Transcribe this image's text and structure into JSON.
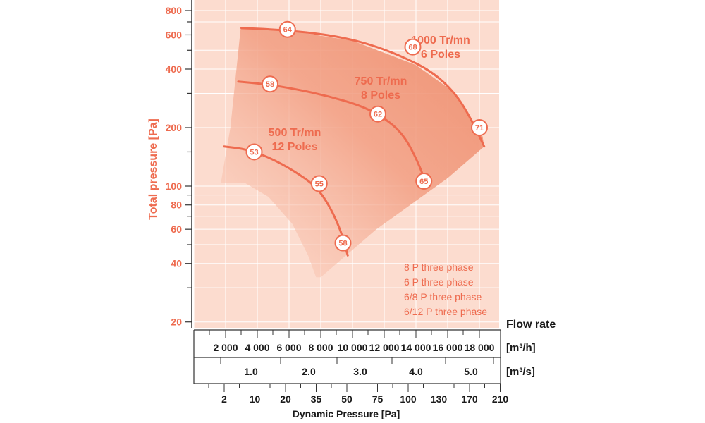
{
  "chart_data": {
    "type": "line",
    "ylabel": "Total pressure [Pa]",
    "y_scale": "log",
    "y_ticks_labeled": [
      20,
      40,
      60,
      80,
      100,
      200,
      400,
      600,
      800
    ],
    "flow_rate_label": "Flow rate",
    "flow_m3h_unit": "[m³/h]",
    "flow_m3h_ticks": [
      "2 000",
      "4 000",
      "6 000",
      "8 000",
      "10 000",
      "12 000",
      "14 000",
      "16 000",
      "18 000"
    ],
    "flow_m3s_unit": "[m³/s]",
    "flow_m3s_ticks": [
      "1.0",
      "2.0",
      "3.0",
      "4.0",
      "5.0"
    ],
    "dynamic_pressure_label": "Dynamic Pressure [Pa]",
    "dynamic_pressure_ticks": [
      "2",
      "10",
      "20",
      "35",
      "50",
      "75",
      "100",
      "130",
      "170",
      "210"
    ],
    "series": [
      {
        "name": "1000 Tr/mn\n6 Poles",
        "points": [
          {
            "x": 3000,
            "y": 650
          },
          {
            "x": 5000,
            "y": 640
          },
          {
            "x": 7000,
            "y": 620
          },
          {
            "x": 9000,
            "y": 590
          },
          {
            "x": 11000,
            "y": 540
          },
          {
            "x": 13000,
            "y": 470
          },
          {
            "x": 15000,
            "y": 390
          },
          {
            "x": 16500,
            "y": 300
          },
          {
            "x": 17500,
            "y": 220
          },
          {
            "x": 18300,
            "y": 160
          }
        ],
        "markers": [
          {
            "x": 5900,
            "y": 640,
            "label": "64"
          },
          {
            "x": 13800,
            "y": 520,
            "label": "68"
          },
          {
            "x": 18000,
            "y": 200,
            "label": "71"
          }
        ]
      },
      {
        "name": "750 Tr/mn\n8 Poles",
        "points": [
          {
            "x": 2800,
            "y": 345
          },
          {
            "x": 4500,
            "y": 335
          },
          {
            "x": 6500,
            "y": 315
          },
          {
            "x": 8500,
            "y": 290
          },
          {
            "x": 10500,
            "y": 260
          },
          {
            "x": 12000,
            "y": 225
          },
          {
            "x": 13200,
            "y": 185
          },
          {
            "x": 14100,
            "y": 135
          },
          {
            "x": 14700,
            "y": 100
          }
        ],
        "markers": [
          {
            "x": 4800,
            "y": 335,
            "label": "58"
          },
          {
            "x": 11600,
            "y": 235,
            "label": "62"
          },
          {
            "x": 14500,
            "y": 106,
            "label": "65"
          }
        ]
      },
      {
        "name": "500 Tr/mn\n12 Poles",
        "points": [
          {
            "x": 1900,
            "y": 160
          },
          {
            "x": 3300,
            "y": 155
          },
          {
            "x": 4800,
            "y": 140
          },
          {
            "x": 6300,
            "y": 120
          },
          {
            "x": 7700,
            "y": 100
          },
          {
            "x": 8600,
            "y": 78
          },
          {
            "x": 9300,
            "y": 58
          },
          {
            "x": 9700,
            "y": 44
          }
        ],
        "markers": [
          {
            "x": 3800,
            "y": 150,
            "label": "53"
          },
          {
            "x": 7900,
            "y": 103,
            "label": "55"
          },
          {
            "x": 9400,
            "y": 51,
            "label": "58"
          }
        ]
      }
    ],
    "legend": [
      "8 P three phase",
      "6 P three phase",
      "6/8 P three phase",
      "6/12 P three phase"
    ]
  },
  "colors": {
    "accent": "#ee6b4f",
    "plot_bg": "#fcdccf",
    "shade": "#f3a389",
    "grid": "#ffffff",
    "text_dark": "#1a1a1a"
  }
}
